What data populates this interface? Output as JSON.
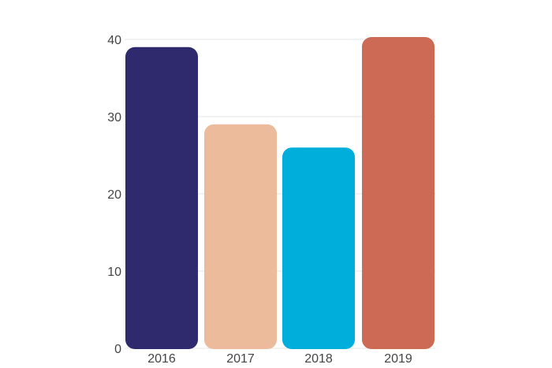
{
  "chart_data": {
    "type": "bar",
    "categories": [
      "2016",
      "2017",
      "2018",
      "2019"
    ],
    "values": [
      39,
      29,
      26,
      40.3
    ],
    "colors": [
      "#2f2a6e",
      "#ebbb9c",
      "#00aedc",
      "#cd6a55"
    ],
    "title": "",
    "xlabel": "",
    "ylabel": "",
    "ylim": [
      0,
      40
    ],
    "yticks": [
      "0",
      "10",
      "20",
      "30",
      "40"
    ],
    "grid": true,
    "legend": "none"
  }
}
